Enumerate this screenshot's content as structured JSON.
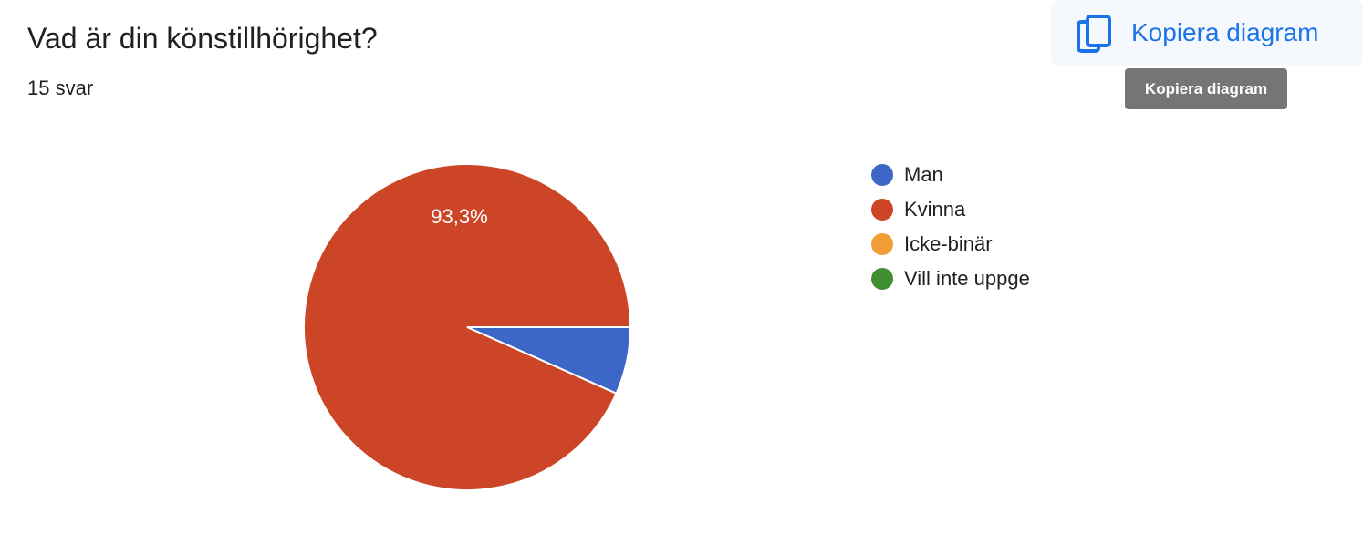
{
  "question": {
    "title": "Vad är din könstillhörighet?",
    "responses": "15 svar"
  },
  "toolbar": {
    "copy_label": "Kopiera diagram",
    "copy_icon": "copy-icon",
    "tooltip": "Kopiera diagram",
    "accent_color": "#1a73e8"
  },
  "chart_data": {
    "type": "pie",
    "title": "Vad är din könstillhörighet?",
    "categories": [
      "Man",
      "Kvinna",
      "Icke-binär",
      "Vill inte uppge"
    ],
    "values": [
      1,
      14,
      0,
      0
    ],
    "colors": [
      "#3d67c7",
      "#cc4527",
      "#f19d38",
      "#3f8e31"
    ],
    "labels": [
      "",
      "93,3%",
      "",
      ""
    ],
    "legend_position": "right"
  }
}
